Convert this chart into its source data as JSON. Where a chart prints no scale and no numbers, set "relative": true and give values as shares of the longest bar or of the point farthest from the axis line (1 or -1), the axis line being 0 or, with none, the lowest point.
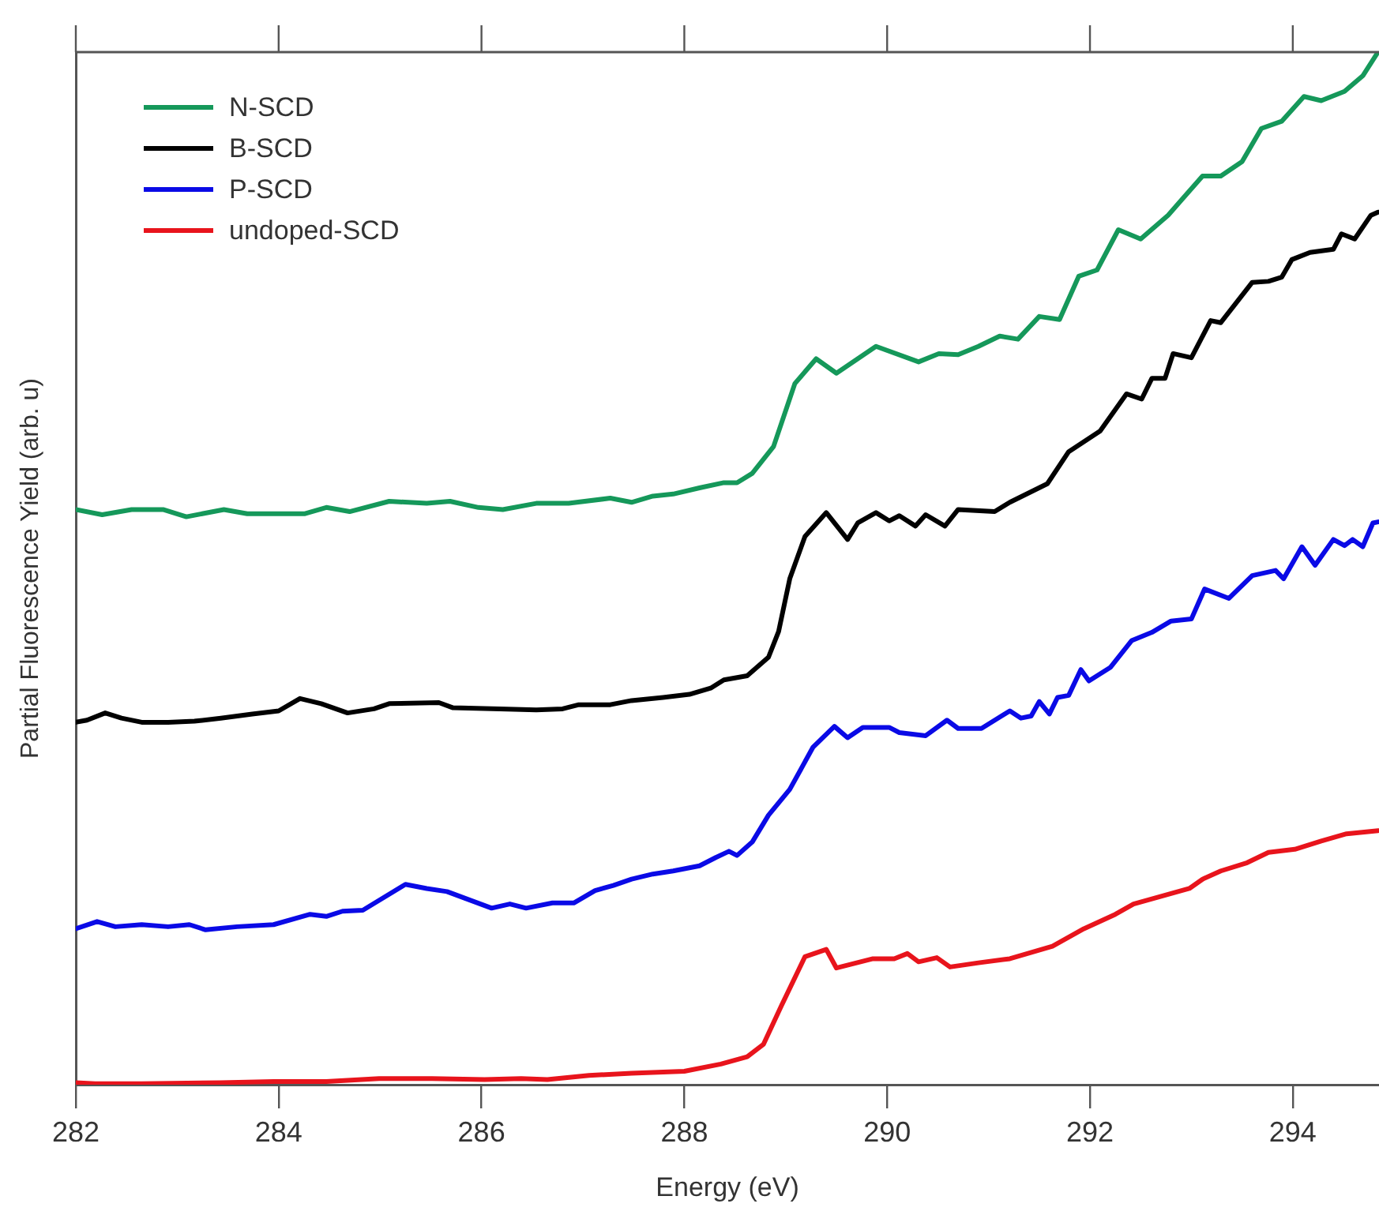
{
  "chart_data": {
    "type": "line",
    "xlabel": "Energy (eV)",
    "ylabel": "Partial Fluorescence Yield (arb. u)",
    "relative": true,
    "xlim": [
      282,
      294.85
    ],
    "xticks": [
      282,
      284,
      286,
      288,
      290,
      292,
      294
    ],
    "grid": false,
    "legend": "top left",
    "marker": "none",
    "series": [
      {
        "name": "N-SCD",
        "color": "#15985a",
        "x": [
          282.0,
          282.26,
          282.55,
          282.86,
          283.09,
          283.46,
          283.69,
          284.26,
          284.47,
          284.7,
          285.09,
          285.46,
          285.69,
          285.97,
          286.21,
          286.54,
          286.86,
          287.27,
          287.48,
          287.69,
          287.89,
          288.15,
          288.39,
          288.52,
          288.67,
          288.88,
          289.09,
          289.3,
          289.5,
          289.89,
          290.31,
          290.51,
          290.7,
          290.9,
          291.11,
          291.29,
          291.5,
          291.7,
          291.89,
          292.07,
          292.28,
          292.5,
          292.77,
          293.11,
          293.29,
          293.5,
          293.69,
          293.89,
          294.11,
          294.28,
          294.51,
          294.69,
          294.84
        ],
        "values": [
          0.557,
          0.552,
          0.557,
          0.557,
          0.55,
          0.557,
          0.553,
          0.553,
          0.559,
          0.555,
          0.565,
          0.563,
          0.565,
          0.559,
          0.557,
          0.563,
          0.563,
          0.568,
          0.564,
          0.57,
          0.572,
          0.578,
          0.583,
          0.583,
          0.592,
          0.618,
          0.679,
          0.703,
          0.689,
          0.715,
          0.7,
          0.708,
          0.707,
          0.715,
          0.725,
          0.722,
          0.744,
          0.741,
          0.783,
          0.789,
          0.828,
          0.819,
          0.842,
          0.88,
          0.88,
          0.894,
          0.926,
          0.933,
          0.957,
          0.953,
          0.962,
          0.977,
          1
        ]
      },
      {
        "name": "B-SCD",
        "color": "#000000",
        "x": [
          282.0,
          282.11,
          282.29,
          282.45,
          282.65,
          282.91,
          283.17,
          283.43,
          283.74,
          284.0,
          284.21,
          284.42,
          284.68,
          284.94,
          285.09,
          285.58,
          285.72,
          286.18,
          286.54,
          286.8,
          286.96,
          287.27,
          287.48,
          287.79,
          288.05,
          288.26,
          288.39,
          288.62,
          288.83,
          288.93,
          289.04,
          289.19,
          289.4,
          289.61,
          289.71,
          289.89,
          290.02,
          290.12,
          290.28,
          290.38,
          290.57,
          290.7,
          291.06,
          291.21,
          291.58,
          291.79,
          292.1,
          292.36,
          292.51,
          292.61,
          292.74,
          292.82,
          293.0,
          293.19,
          293.29,
          293.6,
          293.76,
          293.89,
          293.99,
          294.17,
          294.4,
          294.48,
          294.61,
          294.77,
          294.84
        ],
        "values": [
          0.351,
          0.353,
          0.36,
          0.355,
          0.351,
          0.351,
          0.352,
          0.355,
          0.359,
          0.362,
          0.374,
          0.369,
          0.36,
          0.364,
          0.369,
          0.37,
          0.365,
          0.364,
          0.363,
          0.364,
          0.368,
          0.368,
          0.372,
          0.375,
          0.378,
          0.384,
          0.392,
          0.396,
          0.414,
          0.439,
          0.49,
          0.531,
          0.554,
          0.528,
          0.544,
          0.554,
          0.546,
          0.551,
          0.541,
          0.552,
          0.541,
          0.557,
          0.555,
          0.564,
          0.582,
          0.613,
          0.633,
          0.669,
          0.664,
          0.684,
          0.684,
          0.708,
          0.704,
          0.74,
          0.738,
          0.777,
          0.778,
          0.782,
          0.799,
          0.806,
          0.809,
          0.824,
          0.819,
          0.842,
          0.845
        ]
      },
      {
        "name": "P-SCD",
        "color": "#0a0ae6",
        "x": [
          282.0,
          282.21,
          282.39,
          282.65,
          282.91,
          283.12,
          283.28,
          283.59,
          283.95,
          284.31,
          284.47,
          284.63,
          284.83,
          285.25,
          285.46,
          285.66,
          286.1,
          286.28,
          286.44,
          286.7,
          286.91,
          287.12,
          287.3,
          287.48,
          287.69,
          287.89,
          288.15,
          288.31,
          288.44,
          288.52,
          288.67,
          288.83,
          289.04,
          289.27,
          289.48,
          289.61,
          289.76,
          290.02,
          290.12,
          290.38,
          290.59,
          290.7,
          290.93,
          291.21,
          291.32,
          291.42,
          291.5,
          291.6,
          291.68,
          291.79,
          291.91,
          291.99,
          292.2,
          292.41,
          292.61,
          292.8,
          293.0,
          293.13,
          293.37,
          293.6,
          293.83,
          293.91,
          294.09,
          294.22,
          294.4,
          294.51,
          294.59,
          294.69,
          294.79,
          294.84
        ],
        "values": [
          0.151,
          0.158,
          0.153,
          0.155,
          0.153,
          0.155,
          0.15,
          0.153,
          0.155,
          0.165,
          0.163,
          0.168,
          0.169,
          0.194,
          0.19,
          0.187,
          0.171,
          0.175,
          0.171,
          0.176,
          0.176,
          0.188,
          0.193,
          0.199,
          0.204,
          0.207,
          0.212,
          0.22,
          0.226,
          0.222,
          0.235,
          0.261,
          0.286,
          0.327,
          0.347,
          0.336,
          0.346,
          0.346,
          0.341,
          0.338,
          0.353,
          0.345,
          0.345,
          0.362,
          0.355,
          0.357,
          0.371,
          0.359,
          0.375,
          0.377,
          0.402,
          0.391,
          0.404,
          0.43,
          0.438,
          0.449,
          0.451,
          0.48,
          0.471,
          0.493,
          0.498,
          0.49,
          0.521,
          0.503,
          0.528,
          0.522,
          0.528,
          0.521,
          0.544,
          0.545
        ]
      },
      {
        "name": "undoped-SCD",
        "color": "#e8141c",
        "x": [
          282.0,
          282.19,
          282.65,
          283.43,
          283.95,
          284.47,
          284.99,
          285.51,
          286.03,
          286.39,
          286.65,
          287.06,
          287.48,
          288.0,
          288.36,
          288.62,
          288.78,
          288.96,
          289.19,
          289.4,
          289.5,
          289.86,
          290.07,
          290.2,
          290.31,
          290.49,
          290.62,
          290.9,
          291.21,
          291.63,
          291.94,
          292.25,
          292.43,
          292.98,
          293.11,
          293.29,
          293.55,
          293.76,
          294.02,
          294.28,
          294.53,
          294.84
        ],
        "values": [
          0.002,
          0.001,
          0.001,
          0.002,
          0.003,
          0.003,
          0.006,
          0.006,
          0.005,
          0.006,
          0.005,
          0.009,
          0.011,
          0.013,
          0.02,
          0.027,
          0.039,
          0.077,
          0.124,
          0.131,
          0.113,
          0.122,
          0.122,
          0.127,
          0.119,
          0.123,
          0.114,
          0.118,
          0.122,
          0.134,
          0.151,
          0.165,
          0.175,
          0.19,
          0.199,
          0.207,
          0.215,
          0.225,
          0.228,
          0.236,
          0.243,
          0.246
        ]
      }
    ]
  }
}
